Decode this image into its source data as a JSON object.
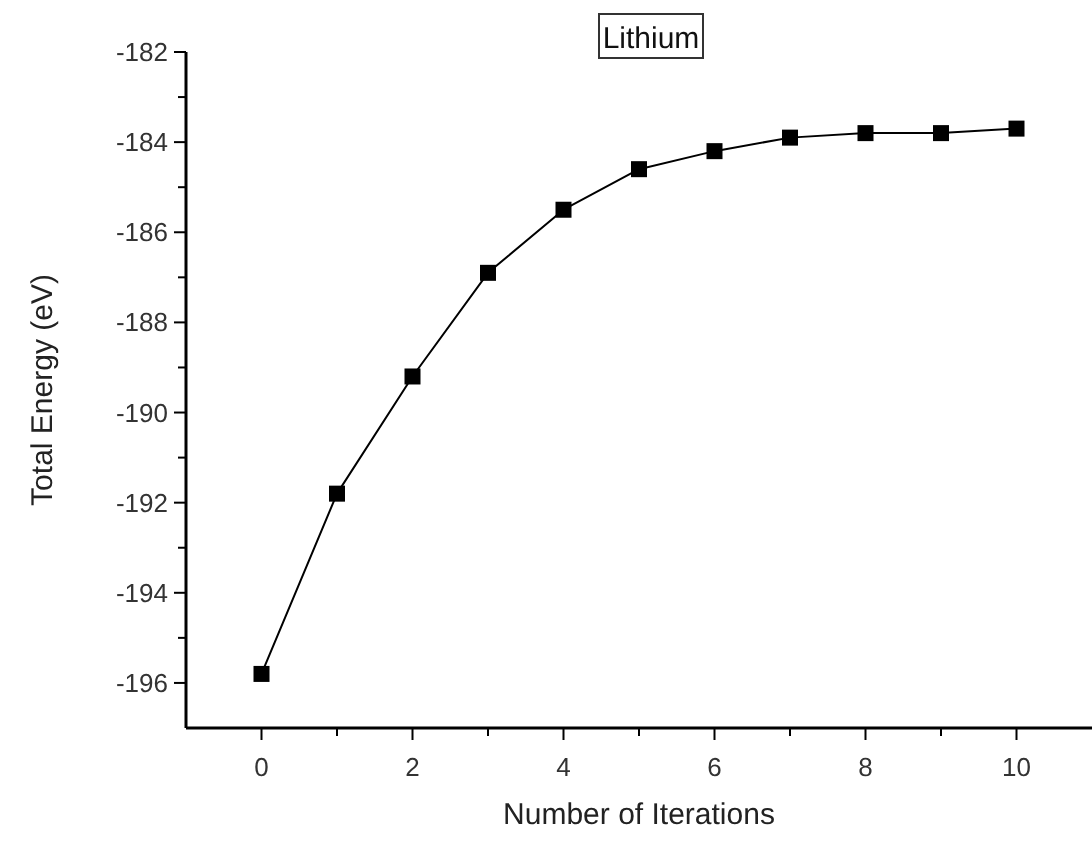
{
  "chart_data": {
    "type": "line",
    "title": "Lithium",
    "xlabel": "Number of Iterations",
    "ylabel": "Total Energy (eV)",
    "x": [
      0,
      1,
      2,
      3,
      4,
      5,
      6,
      7,
      8,
      9,
      10
    ],
    "series": [
      {
        "color": "#000000",
        "values": [
          -195.8,
          -191.8,
          -189.2,
          -186.9,
          -185.5,
          -184.6,
          -184.2,
          -183.9,
          -183.8,
          -183.8,
          -183.7
        ]
      }
    ],
    "xlim": [
      -1,
      11
    ],
    "xticks": [
      0,
      {
        "value": 1,
        "label": null
      },
      2,
      {
        "value": 3,
        "label": null
      },
      4,
      {
        "value": 5,
        "label": null
      },
      6,
      {
        "value": 7,
        "label": null
      },
      8,
      {
        "value": 9,
        "label": null
      },
      10
    ],
    "ylim": [
      -197,
      -182
    ],
    "yticks": [
      -196,
      {
        "value": -195,
        "label": null
      },
      -194,
      {
        "value": -193,
        "label": null
      },
      -192,
      {
        "value": -191,
        "label": null
      },
      -190,
      {
        "value": -189,
        "label": null
      },
      -188,
      {
        "value": -187,
        "label": null
      },
      -186,
      {
        "value": -185,
        "label": null
      },
      -184,
      {
        "value": -183,
        "label": null
      },
      -182
    ],
    "marker": "square",
    "line_style": "solid",
    "grid": false
  }
}
